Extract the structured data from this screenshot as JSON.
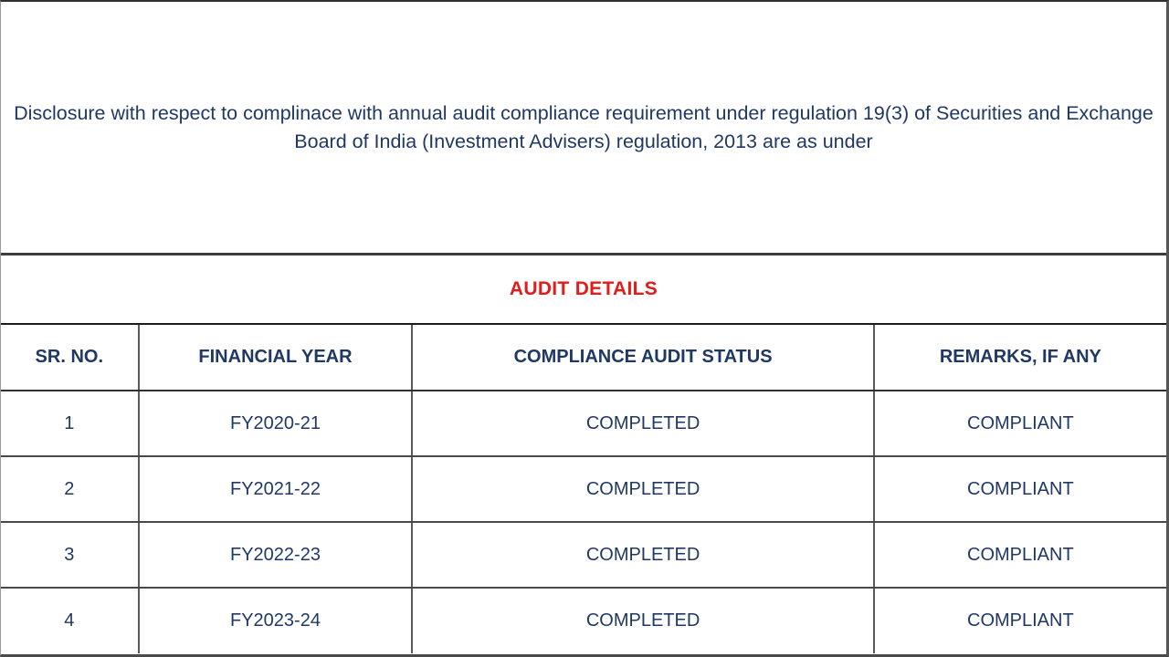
{
  "colors": {
    "text_navy": "#1f3864",
    "accent_red": "#e31b1b",
    "rule_dark": "#303030",
    "rule_gray": "#5a5a5a",
    "background": "#ffffff"
  },
  "heading": {
    "text": "Disclosure with respect to complinace with annual audit compliance requirement under regulation 19(3) of Securities and Exchange Board of India (Investment Advisers) regulation, 2013 are as under"
  },
  "section_title": "AUDIT DETAILS",
  "table": {
    "headers": [
      "SR. NO.",
      "FINANCIAL YEAR",
      "COMPLIANCE AUDIT STATUS",
      "REMARKS, IF ANY"
    ],
    "rows": [
      [
        "1",
        "FY2020-21",
        "COMPLETED",
        "COMPLIANT"
      ],
      [
        "2",
        "FY2021-22",
        "COMPLETED",
        "COMPLIANT"
      ],
      [
        "3",
        "FY2022-23",
        "COMPLETED",
        "COMPLIANT"
      ],
      [
        "4",
        "FY2023-24",
        "COMPLETED",
        "COMPLIANT"
      ]
    ]
  }
}
